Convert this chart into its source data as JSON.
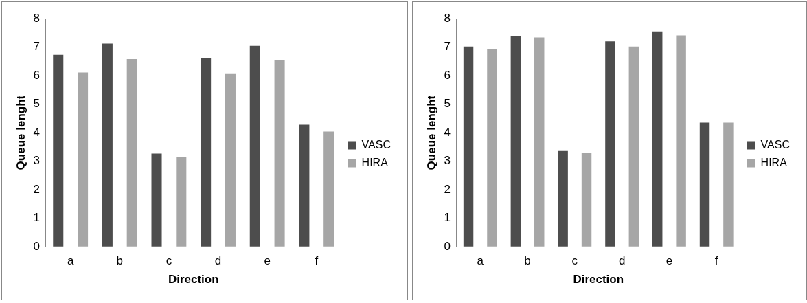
{
  "chart_data": [
    {
      "type": "bar",
      "xlabel": "Direction",
      "ylabel": "Queue lenght",
      "categories": [
        "a",
        "b",
        "c",
        "d",
        "e",
        "f"
      ],
      "series": [
        {
          "name": "VASC",
          "color": "#4d4d4d",
          "values": [
            6.73,
            7.12,
            3.27,
            6.61,
            7.04,
            4.28
          ]
        },
        {
          "name": "HIRA",
          "color": "#a6a6a6",
          "values": [
            6.11,
            6.58,
            3.15,
            6.08,
            6.53,
            4.04
          ]
        }
      ],
      "ylim": [
        0,
        8
      ],
      "yticks": [
        0,
        1,
        2,
        3,
        4,
        5,
        6,
        7,
        8
      ],
      "grid": "y",
      "legend": "right"
    },
    {
      "type": "bar",
      "xlabel": "Direction",
      "ylabel": "Queue lenght",
      "categories": [
        "a",
        "b",
        "c",
        "d",
        "e",
        "f"
      ],
      "series": [
        {
          "name": "VASC",
          "color": "#4d4d4d",
          "values": [
            7.02,
            7.4,
            3.36,
            7.2,
            7.55,
            4.35
          ]
        },
        {
          "name": "HIRA",
          "color": "#a6a6a6",
          "values": [
            6.93,
            7.34,
            3.3,
            7.02,
            7.41,
            4.35
          ]
        }
      ],
      "ylim": [
        0,
        8
      ],
      "yticks": [
        0,
        1,
        2,
        3,
        4,
        5,
        6,
        7,
        8
      ],
      "grid": "y",
      "legend": "right"
    }
  ]
}
